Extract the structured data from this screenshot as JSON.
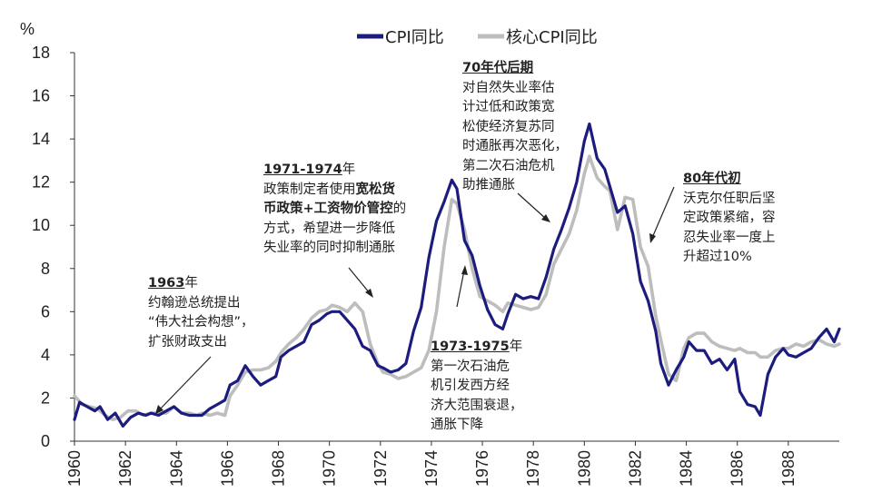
{
  "chart_data": {
    "type": "line",
    "unit_label": "%",
    "ylim": [
      0,
      18
    ],
    "yticks": [
      "0",
      "2",
      "4",
      "6",
      "8",
      "10",
      "12",
      "14",
      "16",
      "18"
    ],
    "xlim": [
      1960,
      1990
    ],
    "xticks": [
      "1960",
      "1962",
      "1964",
      "1966",
      "1968",
      "1970",
      "1972",
      "1974",
      "1976",
      "1978",
      "1980",
      "1982",
      "1984",
      "1986",
      "1988"
    ],
    "grid": false,
    "legend_position": "top",
    "series": [
      {
        "name": "CPI同比",
        "color": "#1c1c7e",
        "points": [
          [
            1960.0,
            1.0
          ],
          [
            1960.2,
            1.8
          ],
          [
            1960.5,
            1.6
          ],
          [
            1960.8,
            1.4
          ],
          [
            1961.0,
            1.6
          ],
          [
            1961.3,
            1.0
          ],
          [
            1961.6,
            1.3
          ],
          [
            1961.9,
            0.7
          ],
          [
            1962.2,
            1.1
          ],
          [
            1962.5,
            1.3
          ],
          [
            1962.8,
            1.2
          ],
          [
            1963.0,
            1.3
          ],
          [
            1963.3,
            1.2
          ],
          [
            1963.6,
            1.4
          ],
          [
            1963.9,
            1.6
          ],
          [
            1964.2,
            1.3
          ],
          [
            1964.5,
            1.2
          ],
          [
            1964.8,
            1.2
          ],
          [
            1965.0,
            1.2
          ],
          [
            1965.3,
            1.5
          ],
          [
            1965.6,
            1.7
          ],
          [
            1965.9,
            1.9
          ],
          [
            1966.1,
            2.6
          ],
          [
            1966.4,
            2.8
          ],
          [
            1966.7,
            3.5
          ],
          [
            1967.0,
            3.0
          ],
          [
            1967.3,
            2.6
          ],
          [
            1967.6,
            2.8
          ],
          [
            1967.9,
            3.0
          ],
          [
            1968.1,
            3.9
          ],
          [
            1968.4,
            4.2
          ],
          [
            1968.7,
            4.4
          ],
          [
            1969.0,
            4.6
          ],
          [
            1969.3,
            5.4
          ],
          [
            1969.6,
            5.6
          ],
          [
            1969.9,
            5.9
          ],
          [
            1970.1,
            6.0
          ],
          [
            1970.4,
            6.0
          ],
          [
            1970.7,
            5.6
          ],
          [
            1971.0,
            5.2
          ],
          [
            1971.3,
            4.4
          ],
          [
            1971.6,
            4.2
          ],
          [
            1971.9,
            3.5
          ],
          [
            1972.1,
            3.4
          ],
          [
            1972.4,
            3.2
          ],
          [
            1972.7,
            3.3
          ],
          [
            1973.0,
            3.6
          ],
          [
            1973.3,
            5.1
          ],
          [
            1973.6,
            6.2
          ],
          [
            1973.9,
            8.5
          ],
          [
            1974.2,
            10.2
          ],
          [
            1974.5,
            11.1
          ],
          [
            1974.8,
            12.1
          ],
          [
            1975.0,
            11.7
          ],
          [
            1975.3,
            9.3
          ],
          [
            1975.6,
            8.6
          ],
          [
            1975.9,
            7.2
          ],
          [
            1976.2,
            6.1
          ],
          [
            1976.5,
            5.4
          ],
          [
            1976.8,
            5.2
          ],
          [
            1977.0,
            5.9
          ],
          [
            1977.3,
            6.8
          ],
          [
            1977.6,
            6.6
          ],
          [
            1977.9,
            6.7
          ],
          [
            1978.2,
            6.6
          ],
          [
            1978.5,
            7.6
          ],
          [
            1978.8,
            8.9
          ],
          [
            1979.1,
            9.8
          ],
          [
            1979.4,
            10.8
          ],
          [
            1979.7,
            12.0
          ],
          [
            1980.0,
            13.9
          ],
          [
            1980.2,
            14.7
          ],
          [
            1980.5,
            13.1
          ],
          [
            1980.8,
            12.6
          ],
          [
            1981.0,
            11.8
          ],
          [
            1981.3,
            10.6
          ],
          [
            1981.6,
            10.9
          ],
          [
            1981.9,
            9.6
          ],
          [
            1982.2,
            7.4
          ],
          [
            1982.5,
            6.5
          ],
          [
            1982.8,
            5.1
          ],
          [
            1983.0,
            3.6
          ],
          [
            1983.3,
            2.6
          ],
          [
            1983.6,
            3.3
          ],
          [
            1983.9,
            3.9
          ],
          [
            1984.1,
            4.6
          ],
          [
            1984.4,
            4.2
          ],
          [
            1984.7,
            4.2
          ],
          [
            1985.0,
            3.6
          ],
          [
            1985.3,
            3.8
          ],
          [
            1985.6,
            3.3
          ],
          [
            1985.9,
            3.8
          ],
          [
            1986.1,
            2.3
          ],
          [
            1986.4,
            1.7
          ],
          [
            1986.7,
            1.6
          ],
          [
            1986.9,
            1.2
          ],
          [
            1987.2,
            3.1
          ],
          [
            1987.5,
            3.9
          ],
          [
            1987.8,
            4.3
          ],
          [
            1988.0,
            4.0
          ],
          [
            1988.3,
            3.9
          ],
          [
            1988.6,
            4.1
          ],
          [
            1988.9,
            4.3
          ],
          [
            1989.2,
            4.8
          ],
          [
            1989.5,
            5.2
          ],
          [
            1989.8,
            4.6
          ],
          [
            1990.0,
            5.2
          ]
        ]
      },
      {
        "name": "核心CPI同比",
        "color": "#bdbdbd",
        "points": [
          [
            1960.0,
            2.1
          ],
          [
            1960.3,
            1.7
          ],
          [
            1960.6,
            1.6
          ],
          [
            1960.9,
            1.5
          ],
          [
            1961.2,
            1.2
          ],
          [
            1961.5,
            1.0
          ],
          [
            1961.8,
            1.1
          ],
          [
            1962.1,
            1.4
          ],
          [
            1962.4,
            1.4
          ],
          [
            1962.7,
            1.2
          ],
          [
            1963.0,
            1.3
          ],
          [
            1963.3,
            1.3
          ],
          [
            1963.6,
            1.3
          ],
          [
            1963.9,
            1.6
          ],
          [
            1964.2,
            1.3
          ],
          [
            1964.5,
            1.3
          ],
          [
            1964.8,
            1.2
          ],
          [
            1965.0,
            1.3
          ],
          [
            1965.3,
            1.2
          ],
          [
            1965.6,
            1.3
          ],
          [
            1965.9,
            1.2
          ],
          [
            1966.1,
            2.1
          ],
          [
            1966.4,
            2.6
          ],
          [
            1966.7,
            3.2
          ],
          [
            1967.0,
            3.3
          ],
          [
            1967.3,
            3.3
          ],
          [
            1967.6,
            3.4
          ],
          [
            1967.9,
            3.7
          ],
          [
            1968.1,
            4.1
          ],
          [
            1968.4,
            4.5
          ],
          [
            1968.7,
            4.8
          ],
          [
            1969.0,
            5.2
          ],
          [
            1969.3,
            5.7
          ],
          [
            1969.6,
            6.0
          ],
          [
            1969.9,
            6.1
          ],
          [
            1970.1,
            6.3
          ],
          [
            1970.4,
            6.2
          ],
          [
            1970.7,
            6.0
          ],
          [
            1971.0,
            6.4
          ],
          [
            1971.3,
            6.0
          ],
          [
            1971.6,
            4.5
          ],
          [
            1971.9,
            3.6
          ],
          [
            1972.1,
            3.2
          ],
          [
            1972.4,
            3.1
          ],
          [
            1972.7,
            2.9
          ],
          [
            1973.0,
            3.0
          ],
          [
            1973.3,
            3.2
          ],
          [
            1973.6,
            3.4
          ],
          [
            1973.9,
            4.2
          ],
          [
            1974.2,
            6.0
          ],
          [
            1974.5,
            9.0
          ],
          [
            1974.8,
            11.2
          ],
          [
            1975.0,
            11.0
          ],
          [
            1975.3,
            9.8
          ],
          [
            1975.6,
            8.0
          ],
          [
            1975.9,
            6.7
          ],
          [
            1976.2,
            6.5
          ],
          [
            1976.5,
            6.3
          ],
          [
            1976.8,
            6.0
          ],
          [
            1977.0,
            6.4
          ],
          [
            1977.3,
            6.3
          ],
          [
            1977.6,
            6.2
          ],
          [
            1977.9,
            6.1
          ],
          [
            1978.2,
            6.2
          ],
          [
            1978.5,
            6.8
          ],
          [
            1978.8,
            8.2
          ],
          [
            1979.1,
            8.9
          ],
          [
            1979.4,
            9.6
          ],
          [
            1979.7,
            10.7
          ],
          [
            1980.0,
            12.4
          ],
          [
            1980.2,
            13.2
          ],
          [
            1980.5,
            12.2
          ],
          [
            1980.8,
            11.8
          ],
          [
            1981.0,
            11.6
          ],
          [
            1981.3,
            9.8
          ],
          [
            1981.6,
            11.3
          ],
          [
            1981.9,
            11.2
          ],
          [
            1982.2,
            9.0
          ],
          [
            1982.5,
            8.1
          ],
          [
            1982.8,
            5.8
          ],
          [
            1983.0,
            4.7
          ],
          [
            1983.3,
            3.1
          ],
          [
            1983.6,
            2.8
          ],
          [
            1983.9,
            4.3
          ],
          [
            1984.1,
            4.8
          ],
          [
            1984.4,
            5.0
          ],
          [
            1984.7,
            5.0
          ],
          [
            1985.0,
            4.6
          ],
          [
            1985.3,
            4.4
          ],
          [
            1985.6,
            4.3
          ],
          [
            1985.9,
            4.2
          ],
          [
            1986.1,
            4.3
          ],
          [
            1986.4,
            4.1
          ],
          [
            1986.7,
            4.1
          ],
          [
            1986.9,
            3.9
          ],
          [
            1987.2,
            3.9
          ],
          [
            1987.5,
            4.2
          ],
          [
            1987.8,
            4.3
          ],
          [
            1988.0,
            4.3
          ],
          [
            1988.3,
            4.5
          ],
          [
            1988.6,
            4.4
          ],
          [
            1988.9,
            4.6
          ],
          [
            1989.2,
            4.7
          ],
          [
            1989.5,
            4.5
          ],
          [
            1989.8,
            4.4
          ],
          [
            1990.0,
            4.5
          ]
        ]
      }
    ],
    "annotations": [
      {
        "id": "a1963",
        "heading": "1963",
        "heading_suffix": "年",
        "lines": [
          "约翰逊总统提出",
          "“伟大社会构想”，",
          "扩张财政支出"
        ]
      },
      {
        "id": "a1971",
        "heading": "1971-1974",
        "heading_suffix": "年",
        "line1_plain": "政策制定者使用",
        "line1_bold": "宽松货",
        "line2_bold": "币政策+工资物价管控",
        "line2_plain": "的",
        "lines": [
          "方式，希望进一步降低",
          "失业率的同时抑制通胀"
        ]
      },
      {
        "id": "a1973",
        "heading": "1973-1975",
        "heading_suffix": "年",
        "lines": [
          "第一次石油危",
          "机引发西方经",
          "济大范围衰退，",
          "通胀下降"
        ]
      },
      {
        "id": "a70s",
        "heading": "70年代后期",
        "heading_suffix": "",
        "lines": [
          "对自然失业率估",
          "计过低和政策宽",
          "松使经济复苏同",
          "时通胀再次恶化，",
          "第二次石油危机",
          "助推通胀"
        ]
      },
      {
        "id": "a80s",
        "heading": "80年代初",
        "heading_suffix": "",
        "lines": [
          "沃克尔任职后坚",
          "定政策紧缩，容",
          "忍失业率一度上",
          "升超过10%"
        ]
      }
    ]
  }
}
